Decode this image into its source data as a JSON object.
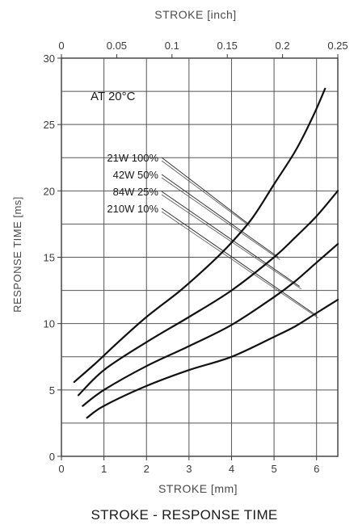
{
  "chart_data": {
    "type": "line",
    "title": "STROKE - RESPONSE TIME",
    "xlabel": "STROKE [mm]",
    "ylabel": "RESPONSE TIME [ms]",
    "x2label": "STROKE [inch]",
    "annotation": "AT 20°C",
    "xlim": [
      0,
      6.5
    ],
    "ylim": [
      0,
      30
    ],
    "x2lim": [
      0,
      0.25
    ],
    "x_ticks": [
      "0",
      "1",
      "2",
      "3",
      "4",
      "5",
      "6"
    ],
    "y_ticks": [
      "0",
      "5",
      "10",
      "15",
      "20",
      "25",
      "30"
    ],
    "x2_ticks": [
      "0",
      "0.05",
      "0.1",
      "0.15",
      "0.2",
      "0.25"
    ],
    "grid": true,
    "series": [
      {
        "name": "21W 100%",
        "x": [
          0.3,
          0.8,
          1.3,
          2.0,
          2.8,
          3.5,
          4.0,
          4.5,
          5.0,
          5.5,
          5.9,
          6.2
        ],
        "y": [
          5.6,
          7.0,
          8.5,
          10.5,
          12.5,
          14.5,
          16.1,
          18.0,
          20.5,
          23.0,
          25.5,
          27.7
        ]
      },
      {
        "name": "42W 50%",
        "x": [
          0.4,
          1.0,
          2.0,
          3.0,
          4.0,
          5.0,
          5.5,
          6.0,
          6.5
        ],
        "y": [
          4.6,
          6.5,
          8.6,
          10.5,
          12.5,
          15.0,
          16.5,
          18.1,
          20.0
        ]
      },
      {
        "name": "84W 25%",
        "x": [
          0.5,
          1.0,
          2.0,
          3.0,
          4.0,
          5.0,
          5.5,
          6.0,
          6.5
        ],
        "y": [
          3.8,
          5.0,
          6.8,
          8.3,
          9.9,
          12.0,
          13.2,
          14.6,
          16.0
        ]
      },
      {
        "name": "210W 10%",
        "x": [
          0.6,
          1.0,
          2.0,
          3.0,
          4.0,
          5.0,
          5.5,
          6.0,
          6.5
        ],
        "y": [
          2.9,
          3.8,
          5.3,
          6.5,
          7.5,
          9.0,
          9.8,
          10.8,
          11.8
        ]
      }
    ],
    "legend_entries": [
      "21W  100%",
      "42W    50%",
      "84W    25%",
      "210W   10%"
    ],
    "leader_targets": [
      {
        "x": 4.4,
        "y": 17.5
      },
      {
        "x": 5.1,
        "y": 15.0
      },
      {
        "x": 5.6,
        "y": 12.8
      },
      {
        "x": 6.0,
        "y": 10.6
      }
    ]
  }
}
